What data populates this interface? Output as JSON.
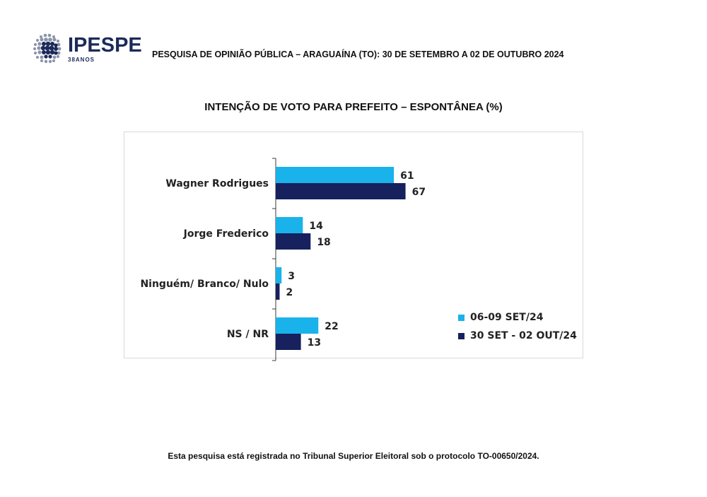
{
  "header": {
    "logo_text": "IPESPE",
    "logo_sub": "38ANOS",
    "title": "PESQUISA DE OPINIÃO PÚBLICA – ARAGUAÍNA (TO): 30 DE SETEMBRO A 02 DE OUTUBRO 2024"
  },
  "chart_data": {
    "type": "bar",
    "orientation": "horizontal",
    "title": "INTENÇÃO DE VOTO PARA PREFEITO – ESPONTÂNEA (%)",
    "categories": [
      "Wagner Rodrigues",
      "Jorge Frederico",
      "Ninguém/ Branco/ Nulo",
      "NS / NR"
    ],
    "series": [
      {
        "name": "06-09 SET/24",
        "color": "#1ab2ea",
        "values": [
          61,
          14,
          3,
          22
        ]
      },
      {
        "name": "30 SET - 02 OUT/24",
        "color": "#16215e",
        "values": [
          67,
          18,
          2,
          13
        ]
      }
    ],
    "xlim": [
      0,
      100
    ],
    "grid": false,
    "legend_position": "bottom-right"
  },
  "footer": {
    "text": "Esta pesquisa está registrada no Tribunal Superior Eleitoral sob o protocolo TO-00650/2024."
  }
}
